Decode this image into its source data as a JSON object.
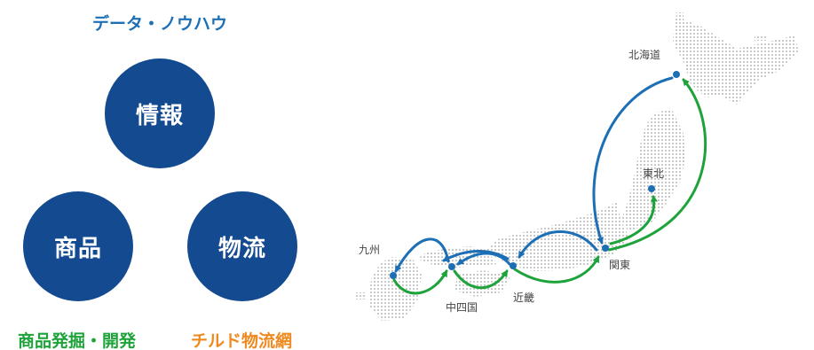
{
  "colors": {
    "navy": "#144a8f",
    "blue": "#1d6fb5",
    "green": "#1ea33a",
    "orange": "#ee8a1f",
    "map_dot": "#c9c9c9"
  },
  "left": {
    "top_caption": "データ・ノウハウ",
    "circles": {
      "info": "情報",
      "product": "商品",
      "logistics": "物流"
    },
    "bottom_left_caption": "商品発掘・開発",
    "bottom_right_caption": "チルド物流網"
  },
  "map": {
    "regions": {
      "hokkaido": "北海道",
      "tohoku": "東北",
      "kanto": "関東",
      "kinki": "近畿",
      "chushikoku": "中四国",
      "kyushu": "九州"
    }
  }
}
